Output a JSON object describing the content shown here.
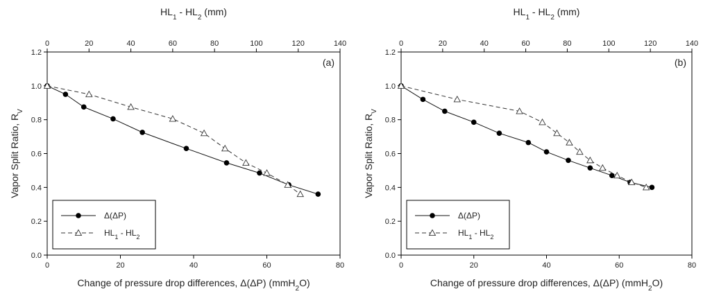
{
  "chart_data": [
    {
      "type": "line",
      "panel_label": "(a)",
      "xlabel_prefix": "Change of pressure drop differences, ",
      "xlabel_symbol": "Δ(ΔP)",
      "xlabel_unit_open": " (mmH",
      "xlabel_unit_sub": "2",
      "xlabel_unit_close": "O)",
      "ylabel_main": "Vapor Split Ratio, R",
      "ylabel_sub": "V",
      "x2label_main": "HL",
      "x2label_sub1": "1",
      "x2label_mid": " - HL",
      "x2label_sub2": "2",
      "x2label_unit": " (mm)",
      "xlim": [
        0,
        80
      ],
      "ylim": [
        0,
        1.2
      ],
      "x2lim": [
        0,
        140
      ],
      "xticks": [
        "0",
        "20",
        "40",
        "60",
        "80"
      ],
      "yticks": [
        "0.0",
        "0.2",
        "0.4",
        "0.6",
        "0.8",
        "1.0",
        "1.2"
      ],
      "x2ticks": [
        "0",
        "20",
        "40",
        "60",
        "80",
        "100",
        "120",
        "140"
      ],
      "legend": {
        "position": "bottom-left",
        "entry1": "Δ(ΔP)",
        "entry2_main": "HL",
        "entry2_sub1": "1",
        "entry2_mid": " - HL",
        "entry2_sub2": "2"
      },
      "series": [
        {
          "axis": "bottom",
          "marker": "filled-circle",
          "line": "solid",
          "x": [
            0,
            5,
            10,
            18,
            26,
            38,
            49,
            58,
            66,
            74
          ],
          "y": [
            1.0,
            0.95,
            0.875,
            0.805,
            0.725,
            0.63,
            0.545,
            0.485,
            0.415,
            0.36
          ]
        },
        {
          "axis": "top",
          "marker": "open-triangle",
          "line": "dashed",
          "x": [
            0,
            20,
            40,
            60,
            75,
            85,
            95,
            105,
            115,
            121
          ],
          "y": [
            1.0,
            0.95,
            0.875,
            0.805,
            0.72,
            0.63,
            0.545,
            0.485,
            0.415,
            0.36
          ]
        }
      ]
    },
    {
      "type": "line",
      "panel_label": "(b)",
      "xlabel_prefix": "Change of pressure drop differences, ",
      "xlabel_symbol": "Δ(ΔP)",
      "xlabel_unit_open": " (mmH",
      "xlabel_unit_sub": "2",
      "xlabel_unit_close": "O)",
      "ylabel_main": "Vapor Split Ratio, R",
      "ylabel_sub": "V",
      "x2label_main": "HL",
      "x2label_sub1": "1",
      "x2label_mid": " - HL",
      "x2label_sub2": "2",
      "x2label_unit": " (mm)",
      "xlim": [
        0,
        80
      ],
      "ylim": [
        0,
        1.2
      ],
      "x2lim": [
        0,
        140
      ],
      "xticks": [
        "0",
        "20",
        "40",
        "60",
        "80"
      ],
      "yticks": [
        "0.0",
        "0.2",
        "0.4",
        "0.6",
        "0.8",
        "1.0",
        "1.2"
      ],
      "x2ticks": [
        "0",
        "20",
        "40",
        "60",
        "80",
        "100",
        "120",
        "140"
      ],
      "legend": {
        "position": "bottom-left",
        "entry1": "Δ(ΔP)",
        "entry2_main": "HL",
        "entry2_sub1": "1",
        "entry2_mid": " - HL",
        "entry2_sub2": "2"
      },
      "series": [
        {
          "axis": "bottom",
          "marker": "filled-circle",
          "line": "solid",
          "x": [
            0,
            6,
            12,
            20,
            27,
            35,
            40,
            46,
            52,
            58,
            63,
            69
          ],
          "y": [
            1.0,
            0.92,
            0.85,
            0.785,
            0.72,
            0.665,
            0.61,
            0.56,
            0.515,
            0.47,
            0.43,
            0.4
          ]
        },
        {
          "axis": "top",
          "marker": "open-triangle",
          "line": "dashed",
          "x": [
            0,
            27,
            57,
            68,
            75,
            81,
            86,
            91,
            97,
            104,
            111,
            118
          ],
          "y": [
            1.0,
            0.92,
            0.85,
            0.785,
            0.72,
            0.665,
            0.61,
            0.56,
            0.515,
            0.47,
            0.43,
            0.4
          ]
        }
      ]
    }
  ]
}
